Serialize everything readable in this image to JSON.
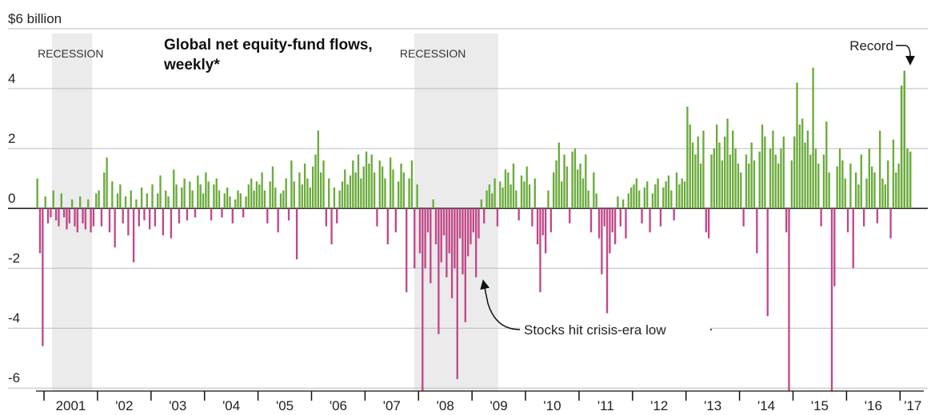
{
  "chart_data": {
    "type": "bar",
    "title": "Global net equity-fund flows, weekly*",
    "categories": [
      null,
      "2001",
      "'02",
      "'03",
      "'04",
      "'05",
      "'06",
      "'07",
      "'08",
      "'09",
      "'10",
      "'11",
      "'12",
      "'13",
      "'14",
      "'15",
      "'16",
      "'17"
    ],
    "values": [
      [
        1.0,
        -1.5,
        -4.6
      ],
      [
        0.4,
        -0.5,
        -0.3,
        0.6,
        -0.4,
        -0.6,
        0.5,
        -0.3,
        -0.7,
        -0.5,
        0.3,
        -0.6,
        -0.8,
        0.4,
        -0.5,
        -0.7,
        0.3,
        -0.8,
        -0.6,
        0.5
      ],
      [
        0.6,
        -0.6,
        1.2,
        1.7,
        -0.8,
        0.9,
        -1.3,
        0.5,
        0.8,
        -0.5,
        0.4,
        -0.9,
        0.6,
        -1.8,
        0.3,
        -0.6,
        0.7,
        -0.4,
        0.5,
        -0.7
      ],
      [
        0.8,
        -0.6,
        0.5,
        1.1,
        -0.9,
        0.6,
        0.4,
        -1.0,
        1.3,
        0.8,
        -0.5,
        0.7,
        1.0,
        -0.4,
        0.9,
        0.6,
        -0.3,
        1.1,
        0.8,
        0.5
      ],
      [
        1.2,
        0.9,
        -0.4,
        0.8,
        1.0,
        0.6,
        -0.3,
        0.5,
        0.7,
        0.4,
        -0.5,
        0.3,
        0.6,
        0.5,
        -0.3,
        0.4,
        0.8,
        1.0,
        0.6,
        0.9
      ],
      [
        0.8,
        1.2,
        0.6,
        -0.5,
        0.9,
        1.4,
        0.7,
        -0.8,
        0.5,
        0.6,
        1.0,
        -0.4,
        1.6,
        0.9,
        -1.7,
        1.2,
        0.8,
        1.5,
        1.0,
        0.7
      ],
      [
        1.4,
        1.8,
        2.6,
        1.2,
        1.6,
        -0.6,
        1.0,
        -1.2,
        0.7,
        -0.5,
        0.6,
        0.9,
        1.3,
        0.8,
        1.1,
        1.6,
        1.2,
        1.8,
        1.0,
        1.4
      ],
      [
        1.9,
        1.5,
        1.8,
        1.2,
        -0.6,
        1.6,
        1.4,
        1.0,
        -1.2,
        1.7,
        1.3,
        -0.8,
        0.9,
        1.5,
        1.2,
        -2.8,
        1.0,
        1.6,
        -2.0,
        0.8
      ],
      [
        -1.5,
        -6.1,
        -2.0,
        -0.8,
        -2.5,
        0.3,
        -1.2,
        -4.2,
        -1.8,
        -0.9,
        -2.3,
        -1.5,
        -3.0,
        -2.0,
        -5.7,
        -1.0,
        -2.2,
        -3.8,
        -1.6,
        -1.2
      ],
      [
        -0.8,
        -2.3,
        -1.0,
        0.3,
        -0.5,
        0.6,
        0.8,
        0.5,
        1.0,
        -0.6,
        0.9,
        0.7,
        1.3,
        1.2,
        0.8,
        1.5,
        0.6,
        -0.4,
        1.1,
        0.9
      ],
      [
        1.4,
        0.8,
        -0.6,
        1.0,
        -1.2,
        -2.8,
        -0.9,
        -1.5,
        0.6,
        -0.8,
        1.2,
        1.6,
        2.2,
        0.9,
        1.8,
        1.4,
        -0.5,
        1.9,
        2.0,
        1.3
      ],
      [
        1.5,
        1.0,
        1.8,
        0.6,
        -0.8,
        1.2,
        0.5,
        -1.0,
        -2.2,
        -0.6,
        -3.5,
        -1.5,
        -0.8,
        -1.2,
        0.4,
        -0.6,
        0.3,
        -1.0,
        0.5,
        0.7
      ],
      [
        0.8,
        1.0,
        0.6,
        -0.5,
        0.7,
        0.9,
        -0.8,
        0.5,
        0.8,
        1.0,
        -0.6,
        0.7,
        0.9,
        1.1,
        0.6,
        -0.4,
        1.2,
        0.8,
        1.0,
        0.9
      ],
      [
        3.4,
        2.8,
        2.2,
        1.8,
        2.4,
        1.5,
        2.6,
        -0.8,
        -1.0,
        1.8,
        2.0,
        2.8,
        2.2,
        1.6,
        2.4,
        3.0,
        1.8,
        2.6,
        2.0,
        1.5
      ],
      [
        1.2,
        -0.6,
        1.8,
        1.5,
        2.2,
        1.6,
        -1.5,
        1.9,
        2.8,
        2.4,
        -3.6,
        2.0,
        2.6,
        1.8,
        1.5,
        2.0,
        2.4,
        -0.8,
        -6.1,
        1.6
      ],
      [
        2.4,
        4.2,
        2.8,
        3.0,
        2.2,
        2.6,
        1.8,
        4.7,
        2.0,
        1.5,
        -0.6,
        1.8,
        2.9,
        1.2,
        -6.1,
        -2.6,
        1.4,
        2.0,
        1.6,
        1.0
      ],
      [
        -0.8,
        1.5,
        -2.0,
        1.2,
        0.8,
        1.8,
        -0.6,
        1.0,
        2.0,
        1.4,
        1.2,
        -0.5,
        2.6,
        1.0,
        0.8,
        1.6,
        -1.0,
        2.3,
        1.2,
        1.5
      ],
      [
        4.1,
        4.6,
        2.0,
        1.9
      ]
    ],
    "positive_color": "#6aab3c",
    "negative_color": "#c2478a",
    "xlim": [
      2000.85,
      2017.22
    ],
    "xticks": [
      2000,
      2001,
      2002,
      2003,
      2004,
      2005,
      2006,
      2007,
      2008,
      2009,
      2010,
      2011,
      2012,
      2013,
      2014,
      2015,
      2016,
      2017
    ],
    "ylim": [
      -6.1,
      6
    ],
    "yticks": [
      {
        "value": 6,
        "label": "$6 billion"
      },
      4,
      2,
      0,
      -2,
      -4,
      -6
    ],
    "grid": true,
    "shaded_regions": [
      {
        "label": "RECESSION",
        "x": [
          2001.15,
          2001.9
        ]
      },
      {
        "label": "RECESSION",
        "x": [
          2007.92,
          2009.49
        ]
      }
    ],
    "annotations": [
      {
        "text": "Record"
      },
      {
        "text": "Stocks hit crisis-era low"
      }
    ]
  }
}
